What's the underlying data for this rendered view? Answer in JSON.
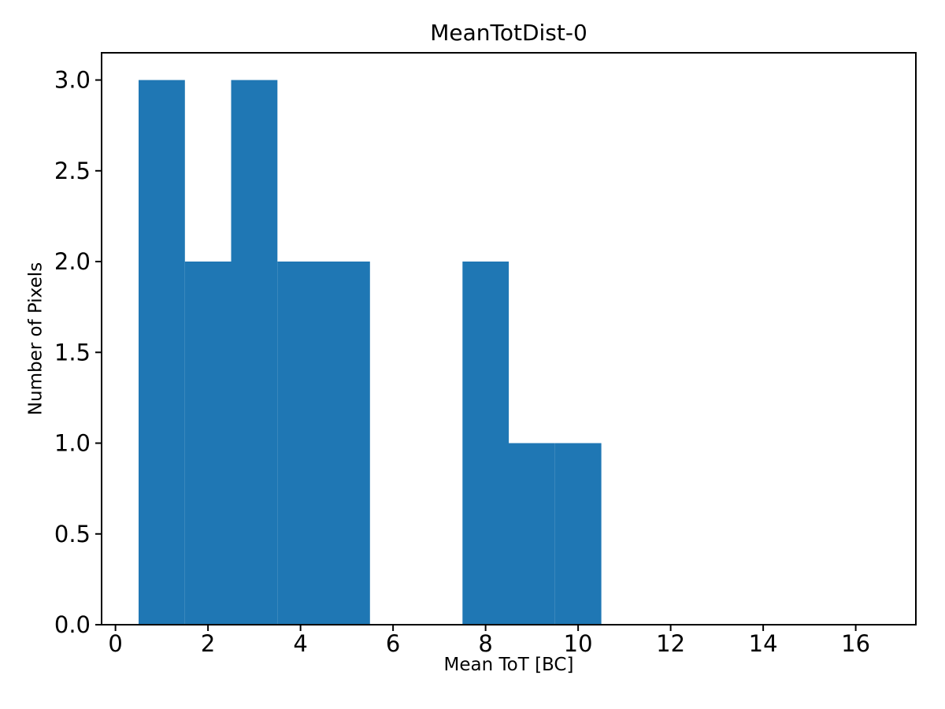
{
  "chart_data": {
    "type": "bar",
    "subtype": "histogram",
    "title": "MeanTotDist-0",
    "xlabel": "Mean ToT [BC]",
    "ylabel": "Number of Pixels",
    "bin_edges": [
      0.5,
      1.5,
      2.5,
      3.5,
      4.5,
      5.5,
      6.5,
      7.5,
      8.5,
      9.5,
      10.5
    ],
    "counts": [
      3,
      2,
      3,
      2,
      2,
      0,
      0,
      2,
      1,
      1
    ],
    "xlim": [
      -0.3,
      17.3
    ],
    "ylim": [
      0,
      3.15
    ],
    "xticks": [
      0,
      2,
      4,
      6,
      8,
      10,
      12,
      14,
      16
    ],
    "xtick_labels": [
      "0",
      "2",
      "4",
      "6",
      "8",
      "10",
      "12",
      "14",
      "16"
    ],
    "yticks": [
      0,
      0.5,
      1,
      1.5,
      2,
      2.5,
      3
    ],
    "ytick_labels": [
      "0.0",
      "0.5",
      "1.0",
      "1.5",
      "2.0",
      "2.5",
      "3.0"
    ],
    "bar_color": "#1f77b4",
    "axis_color": "#000000",
    "background": "#ffffff",
    "grid": false,
    "legend_position": "none"
  }
}
